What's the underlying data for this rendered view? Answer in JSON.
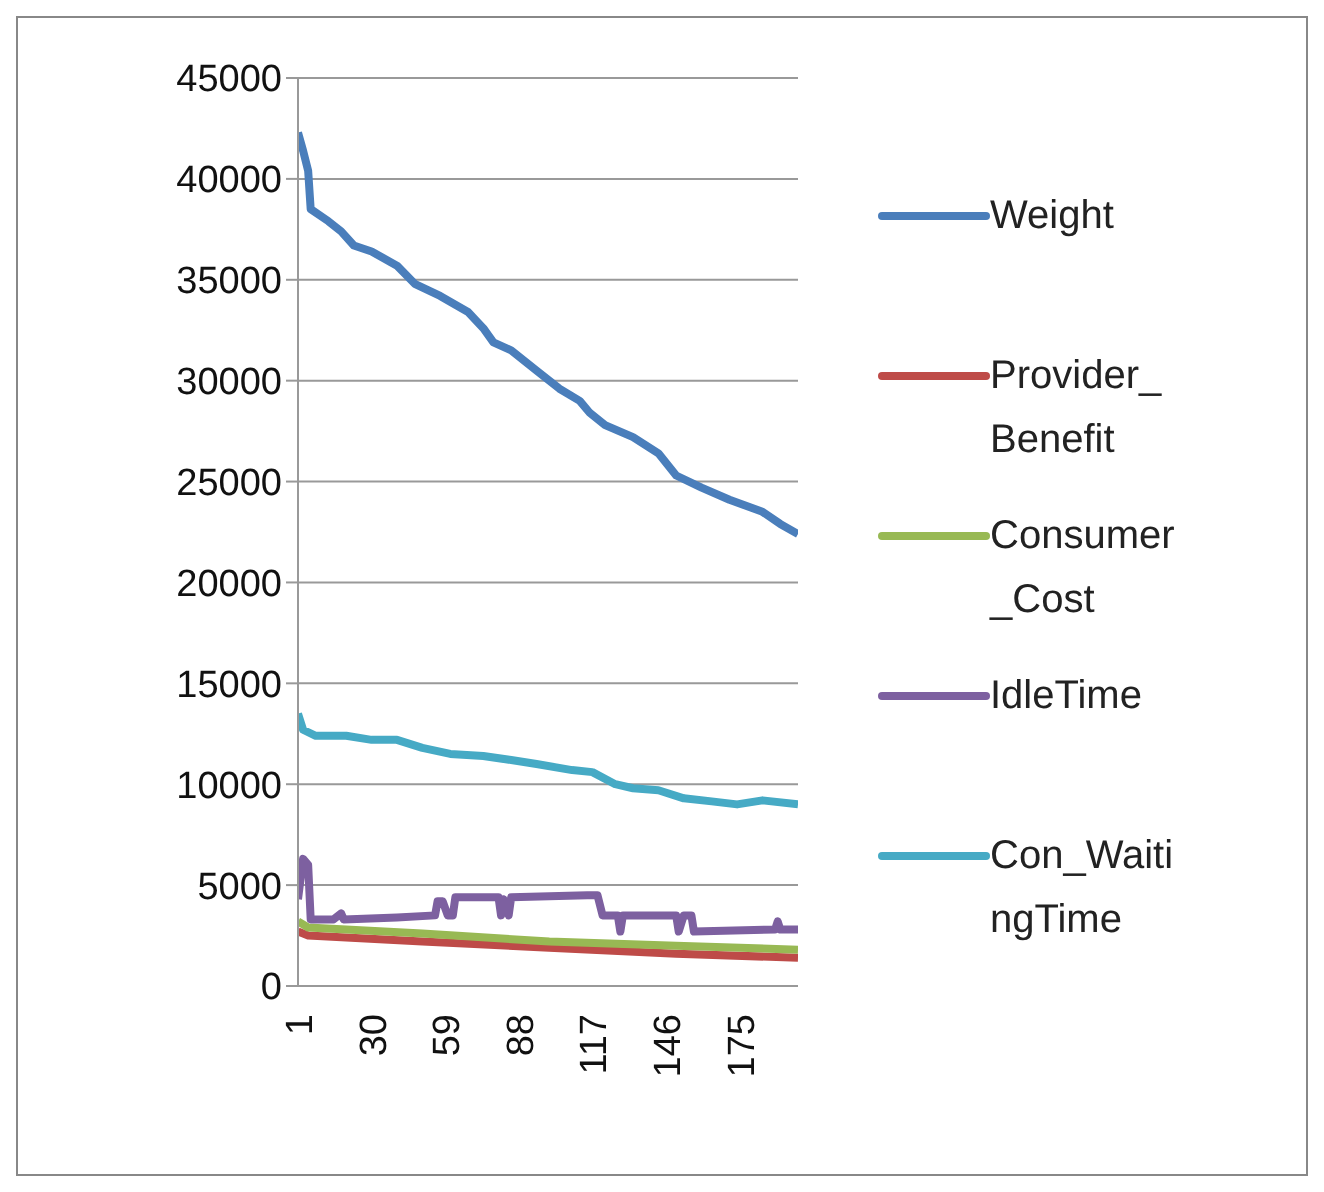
{
  "chart_data": {
    "type": "line",
    "xlim": [
      1,
      198
    ],
    "xticks": [
      1,
      30,
      59,
      88,
      117,
      146,
      175
    ],
    "ylim": [
      0,
      45000
    ],
    "yticks": [
      0,
      5000,
      10000,
      15000,
      20000,
      25000,
      30000,
      35000,
      40000,
      45000
    ],
    "grid": "y",
    "legend": "right",
    "marker": "none",
    "line_style": "solid",
    "series": [
      {
        "name": "Weight",
        "color": "#4a7ebb",
        "x": [
          1,
          3,
          5,
          6,
          13,
          18,
          23,
          30,
          40,
          47,
          57,
          68,
          74,
          78,
          85,
          95,
          104,
          112,
          116,
          122,
          133,
          143,
          150,
          160,
          171,
          184,
          191,
          198
        ],
        "values": [
          42300,
          41400,
          40400,
          38500,
          37900,
          37400,
          36700,
          36400,
          35700,
          34800,
          34200,
          33400,
          32600,
          31900,
          31500,
          30500,
          29600,
          29000,
          28400,
          27800,
          27200,
          26400,
          25300,
          24700,
          24100,
          23500,
          22900,
          22400
        ]
      },
      {
        "name": "Provider_Benefit",
        "color": "#be4b48",
        "x": [
          1,
          5,
          50,
          100,
          150,
          198
        ],
        "values": [
          2700,
          2500,
          2200,
          1900,
          1600,
          1400
        ]
      },
      {
        "name": "Consumer_Cost",
        "color": "#98b954",
        "x": [
          1,
          5,
          50,
          100,
          150,
          198
        ],
        "values": [
          3200,
          2900,
          2600,
          2200,
          2000,
          1800
        ]
      },
      {
        "name": "IdleTime",
        "color": "#7d60a0",
        "x": [
          1,
          3,
          5,
          6,
          15,
          18,
          19,
          40,
          55,
          56,
          58,
          60,
          62,
          63,
          80,
          81,
          82,
          84,
          85,
          115,
          119,
          121,
          127,
          128,
          129,
          150,
          151,
          153,
          156,
          157,
          189,
          190,
          191,
          198
        ],
        "values": [
          4300,
          6300,
          6000,
          3300,
          3300,
          3600,
          3300,
          3400,
          3500,
          4200,
          4200,
          3500,
          3500,
          4400,
          4400,
          3500,
          4300,
          3500,
          4400,
          4500,
          4500,
          3500,
          3500,
          2700,
          3500,
          3500,
          2700,
          3500,
          3500,
          2700,
          2800,
          3200,
          2800,
          2800
        ]
      },
      {
        "name": "Con_WaitingTime",
        "color": "#46aac5",
        "x": [
          1,
          3,
          8,
          20,
          30,
          40,
          50,
          61,
          74,
          85,
          95,
          109,
          117,
          126,
          133,
          143,
          153,
          164,
          174,
          184,
          198
        ],
        "values": [
          13500,
          12700,
          12400,
          12400,
          12200,
          12200,
          11800,
          11500,
          11400,
          11200,
          11000,
          10700,
          10600,
          10000,
          9800,
          9700,
          9300,
          9150,
          9000,
          9200,
          9000
        ]
      }
    ]
  }
}
